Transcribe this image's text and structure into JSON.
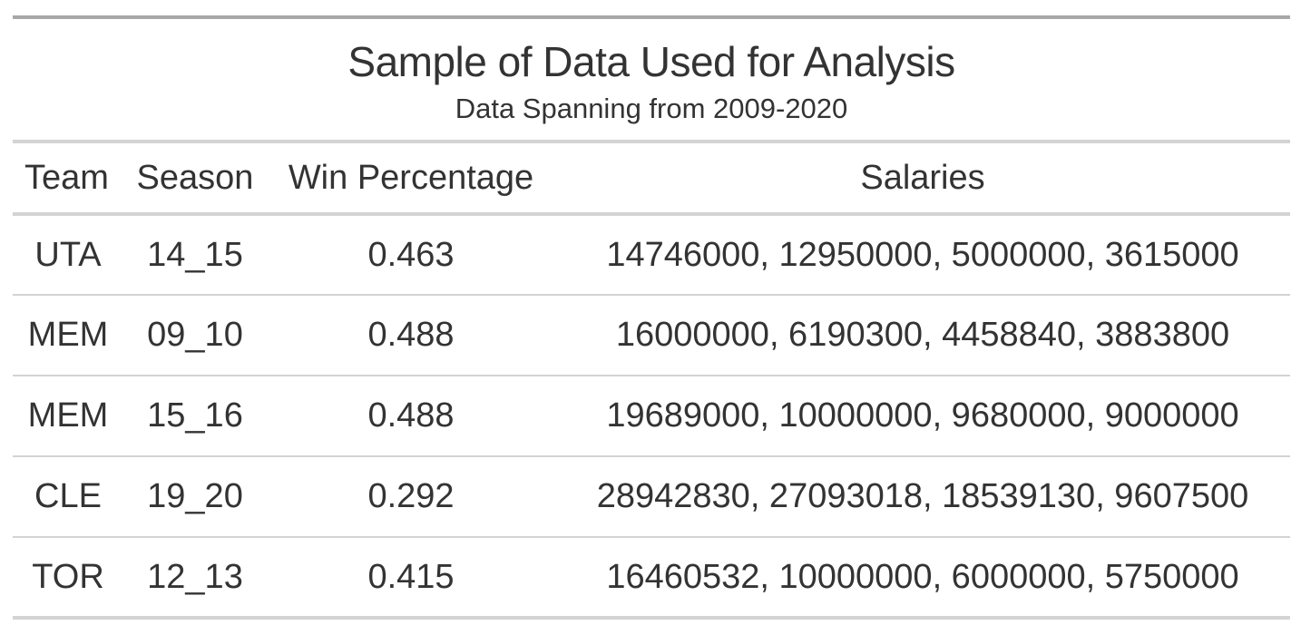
{
  "table": {
    "title": "Sample of Data Used for Analysis",
    "subtitle": "Data Spanning from 2009-2020",
    "columns": [
      "Team",
      "Season",
      "Win Percentage",
      "Salaries"
    ],
    "rows": [
      {
        "team": "UTA",
        "season": "14_15",
        "win_pct": "0.463",
        "salaries": "14746000, 12950000, 5000000, 3615000"
      },
      {
        "team": "MEM",
        "season": "09_10",
        "win_pct": "0.488",
        "salaries": "16000000, 6190300, 4458840, 3883800"
      },
      {
        "team": "MEM",
        "season": "15_16",
        "win_pct": "0.488",
        "salaries": "19689000, 10000000, 9680000, 9000000"
      },
      {
        "team": "CLE",
        "season": "19_20",
        "win_pct": "0.292",
        "salaries": "28942830, 27093018, 18539130, 9607500"
      },
      {
        "team": "TOR",
        "season": "12_13",
        "win_pct": "0.415",
        "salaries": "16460532, 10000000, 6000000, 5750000"
      }
    ]
  }
}
